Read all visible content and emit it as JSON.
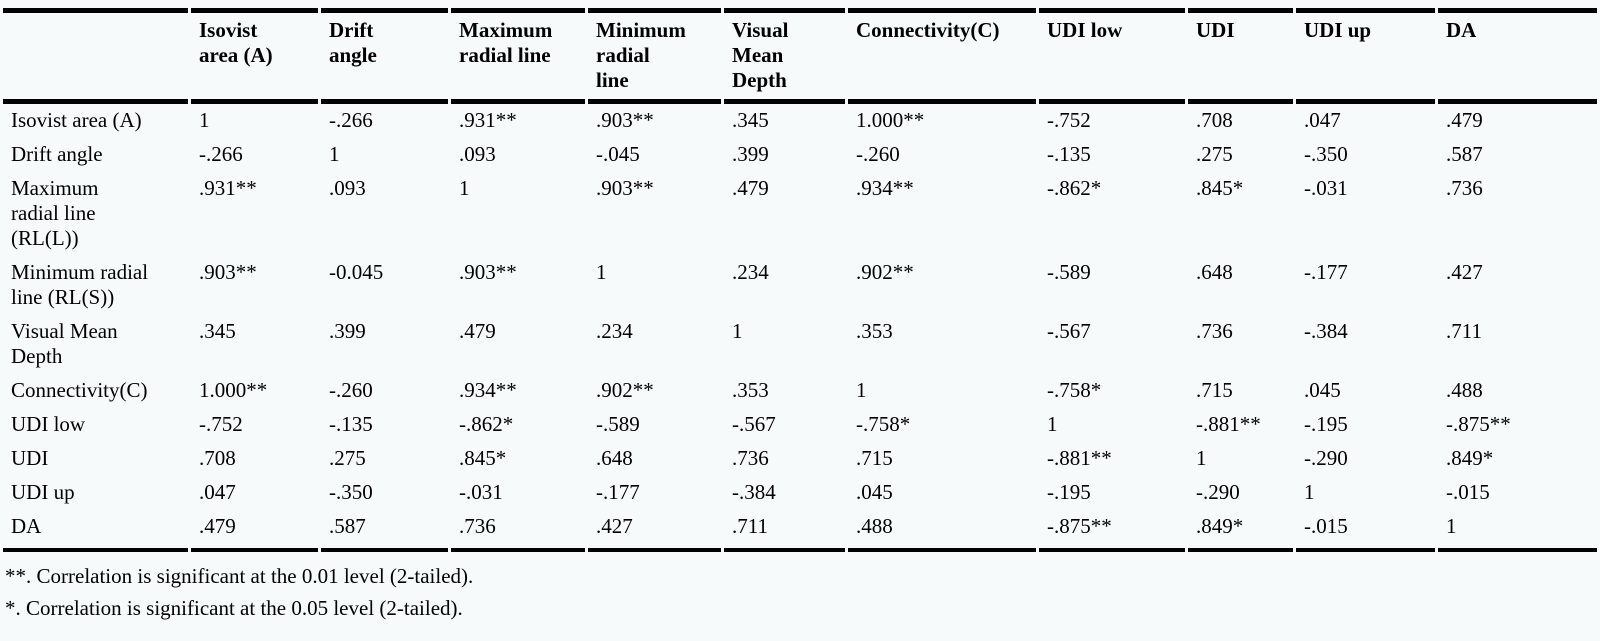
{
  "table": {
    "columns": [
      "",
      "Isovist\narea (A)",
      "Drift\nangle",
      "Maximum\nradial line",
      "Minimum\nradial\nline",
      "Visual\nMean\nDepth",
      "Connectivity(C)",
      "UDI low",
      "UDI",
      "UDI up",
      "DA"
    ],
    "rows": [
      {
        "label": "Isovist area (A)",
        "values": [
          "1",
          "-.266",
          ".931**",
          ".903**",
          ".345",
          "1.000**",
          "-.752",
          ".708",
          ".047",
          ".479"
        ]
      },
      {
        "label": "Drift angle",
        "values": [
          "-.266",
          "1",
          ".093",
          "-.045",
          ".399",
          "-.260",
          "-.135",
          ".275",
          "-.350",
          ".587"
        ]
      },
      {
        "label": "Maximum\nradial line\n(RL(L))",
        "values": [
          ".931**",
          ".093",
          "1",
          ".903**",
          ".479",
          ".934**",
          "-.862*",
          ".845*",
          "-.031",
          ".736"
        ]
      },
      {
        "label": "Minimum radial\nline (RL(S))",
        "values": [
          ".903**",
          "-0.045",
          ".903**",
          "1",
          ".234",
          ".902**",
          "-.589",
          ".648",
          "-.177",
          ".427"
        ]
      },
      {
        "label": "Visual Mean\nDepth",
        "values": [
          ".345",
          ".399",
          ".479",
          ".234",
          "1",
          ".353",
          "-.567",
          ".736",
          "-.384",
          ".711"
        ]
      },
      {
        "label": "Connectivity(C)",
        "values": [
          "1.000**",
          "-.260",
          ".934**",
          ".902**",
          ".353",
          "1",
          "-.758*",
          ".715",
          ".045",
          ".488"
        ]
      },
      {
        "label": "UDI low",
        "values": [
          "-.752",
          "-.135",
          "-.862*",
          "-.589",
          "-.567",
          "-.758*",
          "1",
          "-.881**",
          "-.195",
          "-.875**"
        ]
      },
      {
        "label": "UDI",
        "values": [
          ".708",
          ".275",
          ".845*",
          ".648",
          ".736",
          ".715",
          "-.881**",
          "1",
          "-.290",
          ".849*"
        ]
      },
      {
        "label": "UDI up",
        "values": [
          ".047",
          "-.350",
          "-.031",
          "-.177",
          "-.384",
          ".045",
          "-.195",
          "-.290",
          "1",
          "-.015"
        ]
      },
      {
        "label": "DA",
        "values": [
          ".479",
          ".587",
          ".736",
          ".427",
          ".711",
          ".488",
          "-.875**",
          ".849*",
          "-.015",
          "1"
        ]
      }
    ],
    "footnotes": [
      "**. Correlation is significant at the 0.01 level (2-tailed).",
      "*. Correlation is significant at the 0.05 level (2-tailed)."
    ]
  }
}
